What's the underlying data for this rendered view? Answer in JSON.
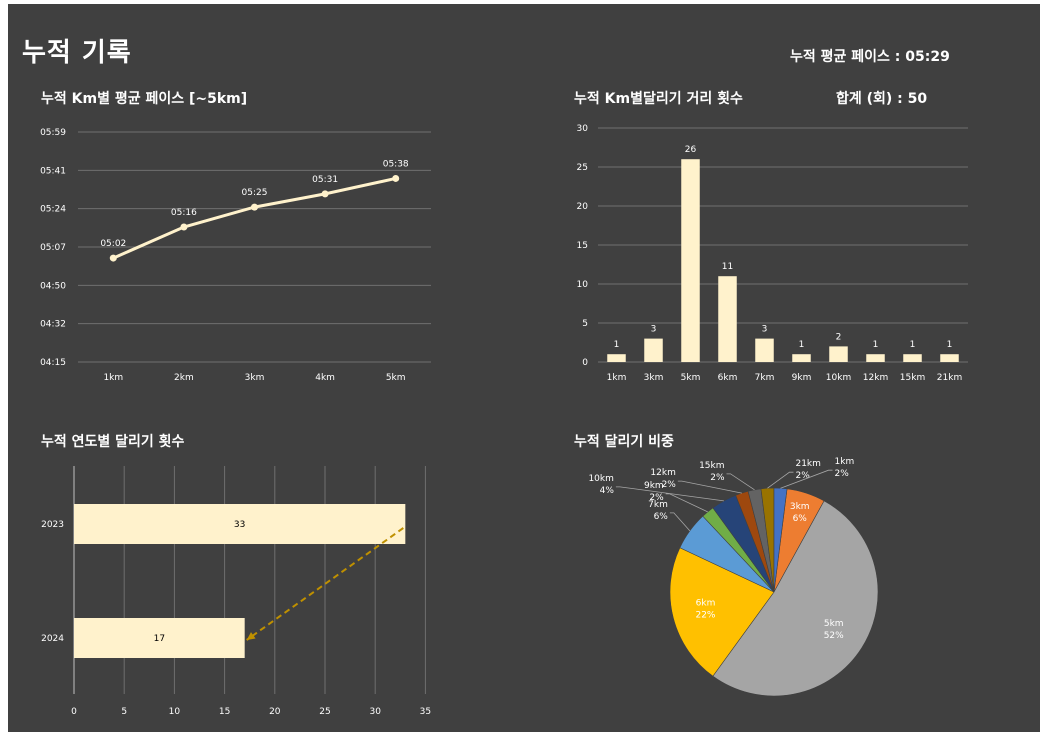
{
  "header": {
    "title": "누적 기록",
    "avg_pace": "누적 평균 페이스 : 05:29"
  },
  "colors": {
    "background": "#404040",
    "bar_fill": "#fff2cc",
    "line": "#fff2cc",
    "arrow": "#bf9000",
    "grid": "#6f6f6f",
    "text": "#ffffff"
  },
  "chart_data": [
    {
      "id": "pace",
      "type": "line",
      "title": "누적 Km별 평균 페이스 [~5km]",
      "categories": [
        "1km",
        "2km",
        "3km",
        "4km",
        "5km"
      ],
      "values": [
        5.033,
        5.267,
        5.417,
        5.517,
        5.633
      ],
      "data_labels": [
        "05:02",
        "05:16",
        "05:25",
        "05:31",
        "05:38"
      ],
      "y_ticks": [
        "04:15",
        "04:32",
        "04:50",
        "05:07",
        "05:24",
        "05:41",
        "05:59"
      ],
      "ylim": [
        4.25,
        5.983
      ],
      "grid": true
    },
    {
      "id": "count",
      "type": "bar",
      "title": "누적 Km별달리기 거리 횟수",
      "total_label": "합계 (회) :  50",
      "categories": [
        "1km",
        "3km",
        "5km",
        "6km",
        "7km",
        "9km",
        "10km",
        "12km",
        "15km",
        "21km"
      ],
      "values": [
        1,
        3,
        26,
        11,
        3,
        1,
        2,
        1,
        1,
        1
      ],
      "y_ticks": [
        0,
        5,
        10,
        15,
        20,
        25,
        30
      ],
      "ylim": [
        0,
        30
      ],
      "grid": true
    },
    {
      "id": "yearly",
      "type": "bar",
      "orientation": "horizontal",
      "title": "누적 연도별 달리기 횟수",
      "categories": [
        "2023",
        "2024"
      ],
      "values": [
        33,
        17
      ],
      "x_ticks": [
        0,
        5,
        10,
        15,
        20,
        25,
        30,
        35
      ],
      "xlim": [
        0,
        35
      ],
      "grid": true
    },
    {
      "id": "share",
      "type": "pie",
      "title": "누적 달리기 비중",
      "slices": [
        {
          "label": "3km",
          "percent": 6,
          "color": "#ed7d31"
        },
        {
          "label": "5km",
          "percent": 52,
          "color": "#a5a5a5"
        },
        {
          "label": "6km",
          "percent": 22,
          "color": "#ffc000"
        },
        {
          "label": "7km",
          "percent": 6,
          "color": "#5b9bd5"
        },
        {
          "label": "9km",
          "percent": 2,
          "color": "#70ad47"
        },
        {
          "label": "10km",
          "percent": 4,
          "color": "#264478"
        },
        {
          "label": "12km",
          "percent": 2,
          "color": "#9e480e"
        },
        {
          "label": "15km",
          "percent": 2,
          "color": "#636363"
        },
        {
          "label": "21km",
          "percent": 2,
          "color": "#997300"
        },
        {
          "label": "1km",
          "percent": 2,
          "color": "#4472c4"
        }
      ]
    }
  ]
}
